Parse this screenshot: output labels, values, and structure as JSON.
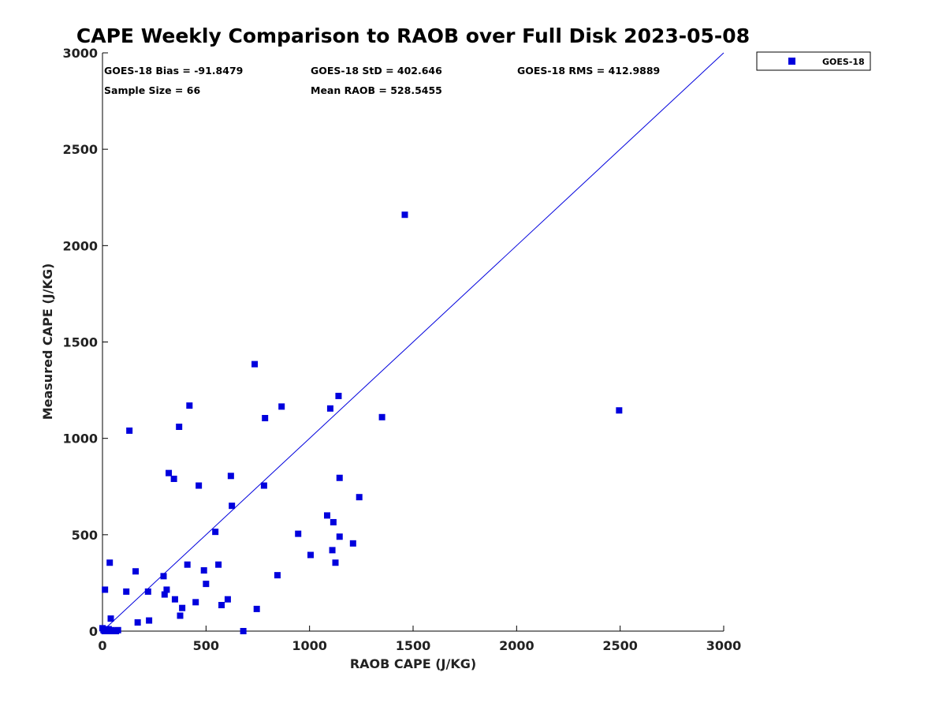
{
  "chart_data": {
    "type": "scatter",
    "title": "CAPE Weekly Comparison to RAOB over Full Disk 2023-05-08",
    "xlabel": "RAOB CAPE (J/KG)",
    "ylabel": "Measured CAPE (J/KG)",
    "xlim": [
      0,
      3000
    ],
    "ylim": [
      0,
      3000
    ],
    "xticks": [
      0,
      500,
      1000,
      1500,
      2000,
      2500,
      3000
    ],
    "yticks": [
      0,
      500,
      1000,
      1500,
      2000,
      2500,
      3000
    ],
    "grid": false,
    "legend_position": "outside-top-right",
    "reference_line": {
      "from": [
        0,
        0
      ],
      "to": [
        3000,
        3000
      ]
    },
    "stats": {
      "bias": "GOES-18 Bias = -91.8479",
      "std": "GOES-18 StD = 402.646",
      "rms": "GOES-18 RMS = 412.9889",
      "sample_size": "Sample Size = 66",
      "mean_raob": "Mean RAOB = 528.5455"
    },
    "series": [
      {
        "name": "GOES-18",
        "color": "#0000dd",
        "points": [
          [
            0,
            15
          ],
          [
            5,
            5
          ],
          [
            10,
            0
          ],
          [
            12,
            215
          ],
          [
            15,
            8
          ],
          [
            20,
            3
          ],
          [
            25,
            0
          ],
          [
            30,
            10
          ],
          [
            35,
            0
          ],
          [
            40,
            65
          ],
          [
            35,
            355
          ],
          [
            45,
            5
          ],
          [
            55,
            0
          ],
          [
            65,
            0
          ],
          [
            75,
            5
          ],
          [
            115,
            205
          ],
          [
            130,
            1040
          ],
          [
            160,
            310
          ],
          [
            170,
            45
          ],
          [
            220,
            205
          ],
          [
            225,
            55
          ],
          [
            295,
            285
          ],
          [
            300,
            190
          ],
          [
            310,
            215
          ],
          [
            320,
            820
          ],
          [
            345,
            790
          ],
          [
            350,
            165
          ],
          [
            370,
            1060
          ],
          [
            375,
            80
          ],
          [
            385,
            120
          ],
          [
            410,
            345
          ],
          [
            420,
            1170
          ],
          [
            450,
            150
          ],
          [
            465,
            755
          ],
          [
            490,
            315
          ],
          [
            500,
            245
          ],
          [
            545,
            515
          ],
          [
            560,
            345
          ],
          [
            575,
            135
          ],
          [
            605,
            165
          ],
          [
            620,
            805
          ],
          [
            625,
            650
          ],
          [
            680,
            0
          ],
          [
            735,
            1385
          ],
          [
            745,
            115
          ],
          [
            780,
            755
          ],
          [
            785,
            1105
          ],
          [
            845,
            290
          ],
          [
            865,
            1165
          ],
          [
            945,
            505
          ],
          [
            1005,
            395
          ],
          [
            1085,
            600
          ],
          [
            1100,
            1155
          ],
          [
            1110,
            420
          ],
          [
            1115,
            565
          ],
          [
            1125,
            355
          ],
          [
            1140,
            1220
          ],
          [
            1145,
            795
          ],
          [
            1145,
            490
          ],
          [
            1210,
            455
          ],
          [
            1240,
            695
          ],
          [
            1350,
            1110
          ],
          [
            1460,
            2160
          ],
          [
            2495,
            1145
          ]
        ]
      }
    ]
  }
}
